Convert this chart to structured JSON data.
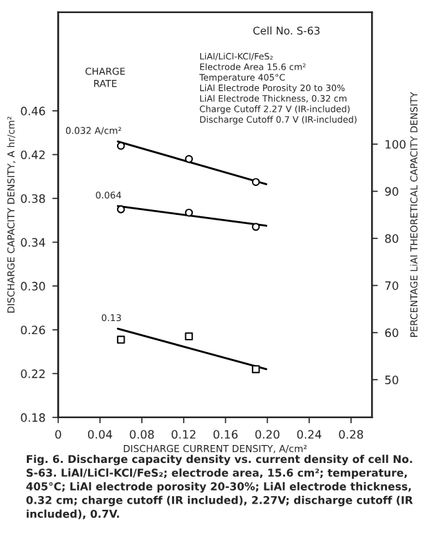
{
  "chart_data": {
    "type": "scatter",
    "xlabel": "DISCHARGE CURRENT DENSITY, A/cm²",
    "ylabel": "DISCHARGE CAPACITY DENSITY, A hr/cm²",
    "y2label": "PERCENTAGE LiAl THEORETICAL CAPACITY DENSITY",
    "xlim": [
      0,
      0.3
    ],
    "xticks": [
      0,
      0.04,
      0.08,
      0.12,
      0.16,
      {
        "value": 0.2,
        "label": "0.20"
      },
      0.24,
      0.28
    ],
    "ylim": [
      0.18,
      0.55
    ],
    "yticks": [
      0.18,
      0.22,
      0.26,
      {
        "value": 0.3,
        "label": "0.30"
      },
      0.34,
      0.38,
      0.42,
      0.46
    ],
    "y2lim": [
      42,
      128
    ],
    "y2ticks": [
      50,
      60,
      70,
      80,
      90,
      100
    ],
    "grid": false,
    "series": [
      {
        "marker": "circle",
        "color": "#000000",
        "x": [
          0.06,
          0.125,
          0.189
        ],
        "values": [
          0.428,
          0.416,
          0.395
        ]
      },
      {
        "marker": "circle",
        "color": "#000000",
        "x": [
          0.06,
          0.125,
          0.189
        ],
        "values": [
          0.37,
          0.367,
          0.354
        ]
      },
      {
        "marker": "square",
        "color": "#000000",
        "x": [
          0.06,
          0.125,
          0.189
        ],
        "values": [
          0.251,
          0.254,
          0.224
        ]
      },
      {
        "type": "line",
        "color": "#000000",
        "x": [
          0.057,
          0.199
        ],
        "values": [
          0.432,
          0.393
        ]
      },
      {
        "type": "line",
        "color": "#000000",
        "x": [
          0.057,
          0.199
        ],
        "values": [
          0.373,
          0.355
        ]
      },
      {
        "type": "line",
        "color": "#000000",
        "x": [
          0.057,
          0.199
        ],
        "values": [
          0.261,
          0.224
        ]
      }
    ],
    "annotations": [
      "0.032 A/cm²",
      "0.064",
      "0.13",
      "CHARGE\nRATE",
      "Cell No. S-63",
      "LiAl/LiCl-KCl/FeS₂\nElectrode Area 15.6 cm²\nTemperature 405°C\nLiAl Electrode Porosity 20 to 30%\nLiAl Electrode Thickness, 0.32 cm\nCharge Cutoff 2.27 V (IR-included)\nDischarge Cutoff 0.7 V (IR-included)",
      "Fig. 6. Discharge capacity density vs. current density of cell No. S-63. LiAl/LiCl-KCl/FeS₂; electrode area, 15.6 cm²; temperature, 405°C; LiAl electrode porosity 20-30%; LiAl electrode thickness, 0.32 cm; charge cutoff (IR included), 2.27V; discharge cutoff (IR included), 0.7V."
    ]
  }
}
